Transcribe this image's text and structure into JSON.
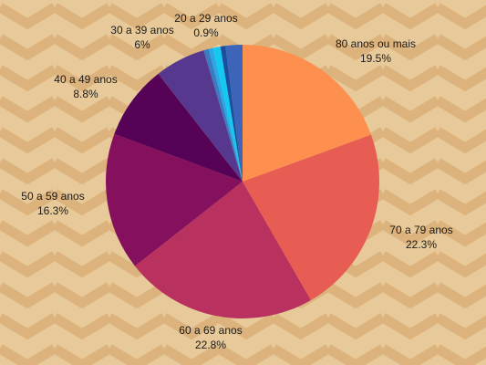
{
  "background": {
    "color": "#e8c99a",
    "pattern_color": "#dcb37c"
  },
  "chart_data": {
    "type": "pie",
    "start_angle_deg": 0,
    "direction": "clockwise",
    "slices": [
      {
        "label": "80 anos ou mais",
        "value": 19.5,
        "value_text": "19.5%",
        "color": "#fd8f4f"
      },
      {
        "label": "70 a 79 anos",
        "value": 22.3,
        "value_text": "22.3%",
        "color": "#e85d53"
      },
      {
        "label": "60 a 69 anos",
        "value": 22.8,
        "value_text": "22.8%",
        "color": "#b8315f"
      },
      {
        "label": "50 a 59 anos",
        "value": 16.3,
        "value_text": "16.3%",
        "color": "#85105d"
      },
      {
        "label": "40 a 49 anos",
        "value": 8.8,
        "value_text": "8.8%",
        "color": "#560256"
      },
      {
        "label": "30 a 39 anos",
        "value": 6,
        "value_text": "6%",
        "color": "#56398f"
      },
      {
        "label": "",
        "value": 0.6,
        "value_text": "",
        "color": "#3a7cc0"
      },
      {
        "label": "",
        "value": 0.5,
        "value_text": "",
        "color": "#2ba6e6"
      },
      {
        "label": "20 a 29 anos",
        "value": 0.9,
        "value_text": "0.9%",
        "color": "#15c8f2"
      },
      {
        "label": "",
        "value": 0.6,
        "value_text": "",
        "color": "#1a4fa0"
      },
      {
        "label": "",
        "value": 2.0,
        "value_text": "",
        "color": "#3c64b8"
      }
    ]
  }
}
